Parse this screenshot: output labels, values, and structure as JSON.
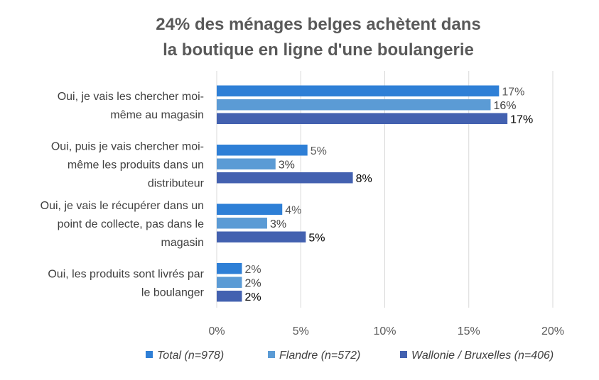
{
  "chart_data": {
    "type": "bar",
    "orientation": "horizontal",
    "title": [
      "24% des ménages belges achètent dans",
      "la boutique en ligne d'une boulangerie"
    ],
    "categories": [
      [
        "Oui, je vais les chercher moi-",
        "même au magasin"
      ],
      [
        "Oui, puis je vais chercher moi-",
        "même les produits dans un",
        "distributeur"
      ],
      [
        "Oui, je vais le récupérer dans un",
        "point de collecte, pas dans le",
        "magasin"
      ],
      [
        "Oui, les produits sont livrés par",
        "le boulanger"
      ]
    ],
    "series": [
      {
        "name": "Total (n=978)",
        "color": "#2e7fd6",
        "values": [
          16.8,
          5.4,
          3.9,
          1.5
        ],
        "labels": [
          "17%",
          "5%",
          "4%",
          "2%"
        ]
      },
      {
        "name": "Flandre (n=572)",
        "color": "#5b9bd5",
        "values": [
          16.3,
          3.5,
          3.0,
          1.5
        ],
        "labels": [
          "16%",
          "3%",
          "3%",
          "2%"
        ]
      },
      {
        "name": "Wallonie / Bruxelles (n=406)",
        "color": "#4361b0",
        "values": [
          17.3,
          8.1,
          5.3,
          1.5
        ],
        "labels": [
          "17%",
          "8%",
          "5%",
          "2%"
        ]
      }
    ],
    "xlim": [
      0,
      20
    ],
    "xticks": [
      0,
      5,
      10,
      15,
      20
    ],
    "xtick_labels": [
      "0%",
      "5%",
      "10%",
      "15%",
      "20%"
    ],
    "grid": "vertical",
    "legend_position": "bottom"
  }
}
